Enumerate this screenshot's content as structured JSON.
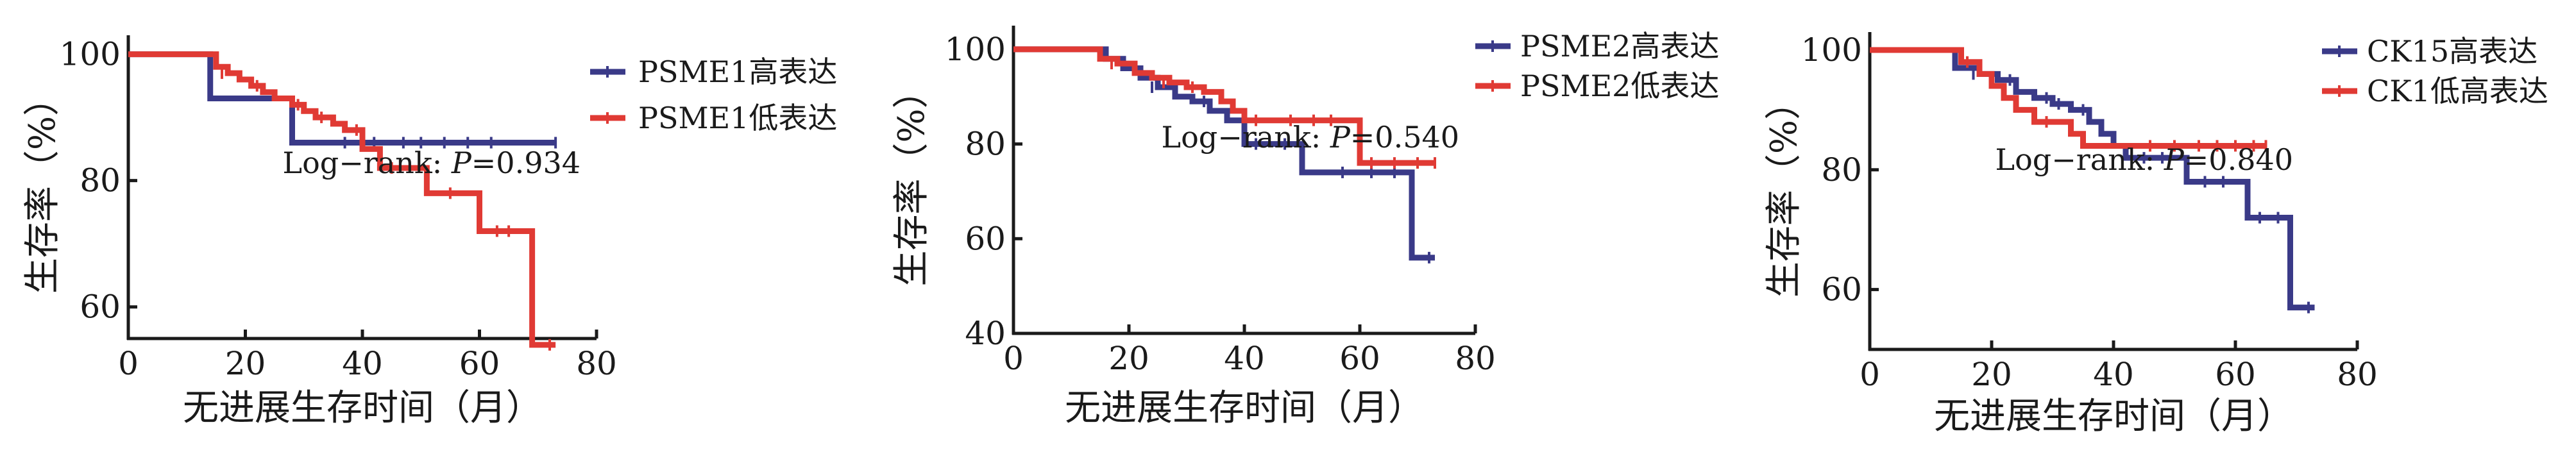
{
  "colors": {
    "high": "#3a3a88",
    "low": "#e03a34",
    "axis": "#1a1a1a"
  },
  "chart_data": [
    {
      "type": "line",
      "subtype": "kaplan-meier",
      "xlabel": "无进展生存时间（月）",
      "ylabel": "生存率（%）",
      "xlim": [
        0,
        80
      ],
      "ylim": [
        55,
        103
      ],
      "xticks": [
        "0",
        "20",
        "40",
        "60",
        "80"
      ],
      "yticks": [
        {
          "value": 60,
          "label": "60"
        },
        {
          "value": 80,
          "label": "80"
        },
        {
          "value": 100,
          "label": "100"
        }
      ],
      "legend": [
        "PSME1高表达",
        "PSME1低表达"
      ],
      "legend_position": "right",
      "annotation": {
        "prefix": "Log−rank: ",
        "p": "P",
        "suffix": "=0.934"
      },
      "series": [
        {
          "name": "PSME1高表达",
          "color_key": "high",
          "x": [
            0,
            13,
            14,
            26,
            28,
            73
          ],
          "y": [
            100,
            100,
            93,
            93,
            86,
            86
          ],
          "censored": [
            [
              37,
              86
            ],
            [
              42,
              86
            ],
            [
              47,
              86
            ],
            [
              50,
              86
            ],
            [
              54,
              86
            ],
            [
              58,
              86
            ],
            [
              62,
              86
            ],
            [
              73,
              86
            ]
          ]
        },
        {
          "name": "PSME1低表达",
          "color_key": "low",
          "x": [
            0,
            13,
            15,
            17,
            19,
            21,
            23,
            25,
            28,
            30,
            32,
            35,
            37,
            40,
            43,
            47,
            51,
            58,
            60,
            68,
            69,
            73
          ],
          "y": [
            100,
            100,
            98,
            97,
            96,
            95,
            94,
            93,
            92,
            91,
            90,
            89,
            88,
            85,
            82,
            82,
            78,
            78,
            72,
            72,
            54,
            54
          ],
          "censored": [
            [
              16,
              97
            ],
            [
              22,
              95
            ],
            [
              29,
              92
            ],
            [
              33,
              90
            ],
            [
              39,
              88
            ],
            [
              45,
              82
            ],
            [
              55,
              78
            ],
            [
              63,
              72
            ],
            [
              65,
              72
            ],
            [
              72,
              54
            ]
          ]
        }
      ]
    },
    {
      "type": "line",
      "subtype": "kaplan-meier",
      "xlabel": "无进展生存时间（月）",
      "ylabel": "生存率（%）",
      "xlim": [
        0,
        80
      ],
      "ylim": [
        40,
        105
      ],
      "xticks": [
        "0",
        "20",
        "40",
        "60",
        "80"
      ],
      "yticks": [
        {
          "value": 40,
          "label": "40"
        },
        {
          "value": 60,
          "label": "60"
        },
        {
          "value": 80,
          "label": "80"
        },
        {
          "value": 100,
          "label": "100"
        }
      ],
      "legend": [
        "PSME2高表达",
        "PSME2低表达"
      ],
      "legend_position": "top-right",
      "annotation": {
        "prefix": "Log−rank: ",
        "p": "P",
        "suffix": "=0.540"
      },
      "series": [
        {
          "name": "PSME2高表达",
          "color_key": "high",
          "x": [
            0,
            13,
            16,
            19,
            22,
            25,
            28,
            31,
            34,
            37,
            40,
            44,
            50,
            52,
            68,
            69,
            73
          ],
          "y": [
            100,
            100,
            98,
            96,
            94,
            92,
            90,
            89,
            87,
            85,
            80,
            80,
            74,
            74,
            74,
            56,
            56
          ],
          "censored": [
            [
              24,
              92
            ],
            [
              33,
              89
            ],
            [
              42,
              80
            ],
            [
              47,
              80
            ],
            [
              57,
              74
            ],
            [
              62,
              74
            ],
            [
              66,
              74
            ],
            [
              72,
              56
            ]
          ]
        },
        {
          "name": "PSME2低表达",
          "color_key": "low",
          "x": [
            0,
            13,
            15,
            18,
            21,
            24,
            27,
            30,
            33,
            36,
            38,
            40,
            58,
            60,
            73
          ],
          "y": [
            100,
            100,
            98,
            97,
            95,
            94,
            93,
            92,
            91,
            89,
            87,
            85,
            85,
            76,
            76
          ],
          "censored": [
            [
              17,
              97
            ],
            [
              26,
              93
            ],
            [
              31,
              92
            ],
            [
              42,
              85
            ],
            [
              48,
              85
            ],
            [
              52,
              85
            ],
            [
              55,
              85
            ],
            [
              62,
              76
            ],
            [
              66,
              76
            ],
            [
              70,
              76
            ],
            [
              73,
              76
            ]
          ]
        }
      ]
    },
    {
      "type": "line",
      "subtype": "kaplan-meier",
      "xlabel": "无进展生存时间（月）",
      "ylabel": "生存率（%）",
      "xlim": [
        0,
        80
      ],
      "ylim": [
        50,
        103
      ],
      "xticks": [
        "0",
        "20",
        "40",
        "60",
        "80"
      ],
      "yticks": [
        {
          "value": 60,
          "label": "60"
        },
        {
          "value": 80,
          "label": "80"
        },
        {
          "value": 100,
          "label": "100"
        }
      ],
      "legend": [
        "CK15高表达",
        "CK1低高表达"
      ],
      "legend_position": "top-right",
      "annotation": {
        "prefix": "Log−rank: ",
        "p": "P",
        "suffix": "=0.840"
      },
      "series": [
        {
          "name": "CK15高表达",
          "color_key": "high",
          "x": [
            0,
            13,
            14,
            18,
            21,
            24,
            27,
            30,
            33,
            36,
            38,
            40,
            42,
            50,
            52,
            60,
            62,
            68,
            69,
            73
          ],
          "y": [
            100,
            100,
            97,
            96,
            95,
            93,
            92,
            91,
            90,
            88,
            86,
            84,
            82,
            82,
            78,
            78,
            72,
            72,
            57,
            57
          ],
          "censored": [
            [
              17,
              96
            ],
            [
              23,
              95
            ],
            [
              29,
              92
            ],
            [
              31,
              91
            ],
            [
              35,
              90
            ],
            [
              45,
              82
            ],
            [
              48,
              82
            ],
            [
              55,
              78
            ],
            [
              58,
              78
            ],
            [
              64,
              72
            ],
            [
              67,
              72
            ],
            [
              72,
              57
            ]
          ]
        },
        {
          "name": "CK1低高表达",
          "color_key": "low",
          "x": [
            0,
            13,
            15,
            18,
            20,
            22,
            24,
            27,
            30,
            33,
            35,
            38,
            40,
            43,
            65
          ],
          "y": [
            100,
            100,
            98,
            96,
            94,
            92,
            90,
            88,
            88,
            86,
            84,
            84,
            84,
            84,
            84
          ],
          "censored": [
            [
              16,
              98
            ],
            [
              29,
              88
            ],
            [
              46,
              84
            ],
            [
              50,
              84
            ],
            [
              54,
              84
            ],
            [
              57,
              84
            ],
            [
              60,
              84
            ],
            [
              63,
              84
            ],
            [
              65,
              84
            ]
          ]
        }
      ]
    }
  ]
}
